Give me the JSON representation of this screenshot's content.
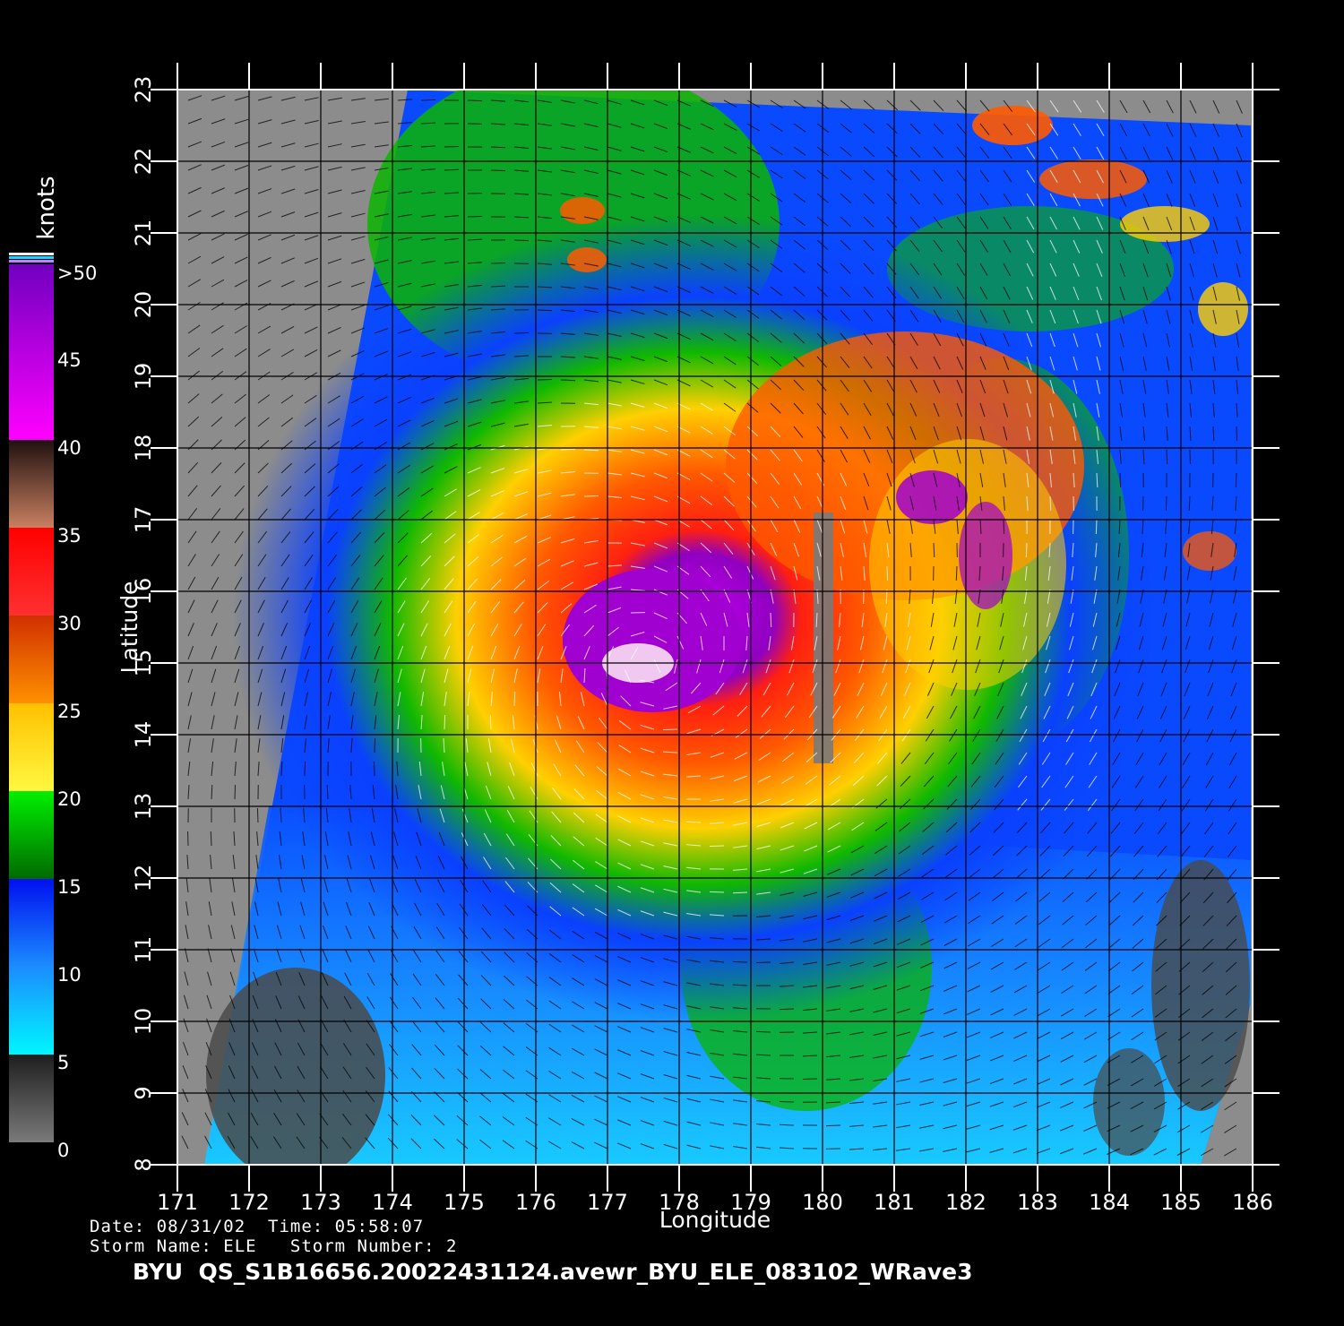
{
  "map": {
    "x_axis": {
      "label": "Longitude",
      "ticks": [
        "171",
        "172",
        "173",
        "174",
        "175",
        "176",
        "177",
        "178",
        "179",
        "180",
        "181",
        "182",
        "183",
        "184",
        "185",
        "186"
      ]
    },
    "y_axis": {
      "label": "Latitude",
      "ticks": [
        "8",
        "9",
        "10",
        "11",
        "12",
        "13",
        "14",
        "15",
        "16",
        "17",
        "18",
        "19",
        "20",
        "21",
        "22",
        "23"
      ]
    },
    "colorbar": {
      "title": "knots",
      "labels": [
        ">50",
        "45",
        "40",
        "35",
        "30",
        "25",
        "20",
        "15",
        "10",
        "5",
        "0"
      ],
      "stops": [
        {
          "from": 0,
          "to": 5,
          "colors": [
            "#7a7a7a",
            "#1e1e1e"
          ]
        },
        {
          "from": 5,
          "to": 10,
          "colors": [
            "#00f6ff",
            "#1c8cff"
          ]
        },
        {
          "from": 10,
          "to": 15,
          "colors": [
            "#1c8cff",
            "#0010f0"
          ]
        },
        {
          "from": 15,
          "to": 20,
          "colors": [
            "#006a00",
            "#00f000"
          ]
        },
        {
          "from": 20,
          "to": 25,
          "colors": [
            "#fff840",
            "#ffc000"
          ]
        },
        {
          "from": 25,
          "to": 30,
          "colors": [
            "#ff9000",
            "#d03000"
          ]
        },
        {
          "from": 30,
          "to": 35,
          "colors": [
            "#ff3030",
            "#ff0000"
          ]
        },
        {
          "from": 35,
          "to": 40,
          "colors": [
            "#c88060",
            "#201010"
          ]
        },
        {
          "from": 40,
          "to": 50,
          "colors": [
            "#ff00ff",
            "#7000c0"
          ]
        }
      ]
    },
    "storm_center": {
      "lon": 177.6,
      "lat": 15.0
    },
    "colors": {
      "land_gap": "#8c8c8c",
      "calm": "#4a4a4a",
      "light": "#1ad8ff",
      "moderate": "#0a50ff",
      "fresh": "#0ab400",
      "strong": "#ffd400",
      "gale": "#ff5a00",
      "storm": "#ff1010",
      "violent": "#a000d0",
      "grid": "#000000",
      "frame": "#ffffff"
    }
  },
  "meta": {
    "line1": "Date: 08/31/02  Time: 05:58:07",
    "line2": "Storm Name: ELE   Storm Number: 2"
  },
  "footer": {
    "title": "BYU  QS_S1B16656.20022431124.avewr_BYU_ELE_083102_WRave3"
  }
}
